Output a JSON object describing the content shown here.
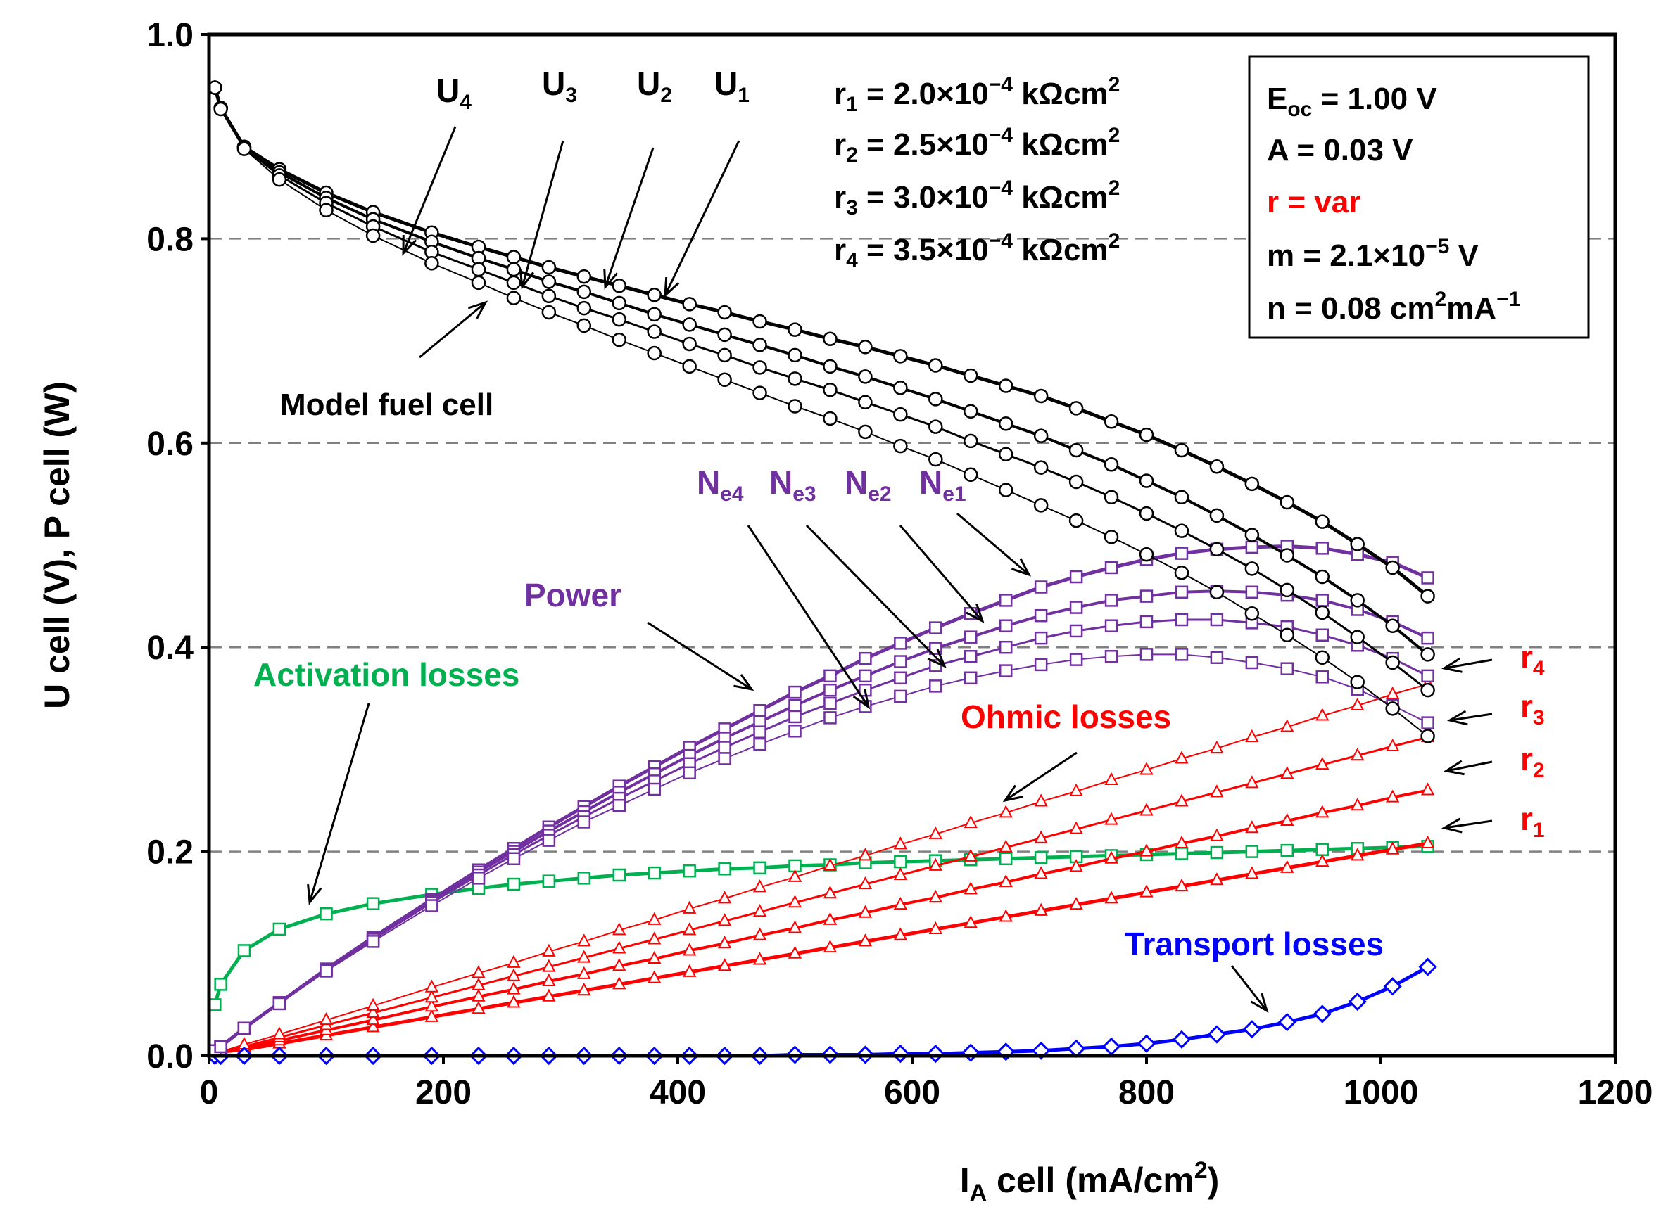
{
  "chart_data": {
    "type": "line",
    "xlabel_main": "I",
    "xlabel_sub": "A",
    "xlabel_rest": " cell (mA/cm",
    "xlabel_sup": "2",
    "xlabel_end": ")",
    "ylabel": "U cell (V), P cell (W)",
    "xlim": [
      0,
      1200
    ],
    "ylim": [
      0,
      1.0
    ],
    "xticks": [
      "0",
      "200",
      "400",
      "600",
      "800",
      "1000",
      "1200"
    ],
    "yticks": [
      "0.0",
      "0.2",
      "0.4",
      "0.6",
      "0.8",
      "1.0"
    ],
    "gridlines_y": [
      0.2,
      0.4,
      0.6,
      0.8
    ],
    "colors": {
      "voltage": "#000000",
      "power": "#7030A0",
      "ohmic": "#FF0000",
      "activation": "#00B050",
      "transport": "#0000FF"
    },
    "x": [
      5,
      10,
      30,
      60,
      100,
      140,
      190,
      230,
      260,
      290,
      320,
      350,
      380,
      410,
      440,
      470,
      500,
      530,
      560,
      590,
      620,
      650,
      680,
      710,
      740,
      770,
      800,
      830,
      860,
      890,
      920,
      950,
      980,
      1010,
      1040
    ],
    "series": [
      {
        "name": "U1",
        "group": "voltage",
        "width": 5,
        "values": [
          0.948,
          0.928,
          0.89,
          0.868,
          0.845,
          0.826,
          0.806,
          0.792,
          0.782,
          0.772,
          0.763,
          0.754,
          0.745,
          0.736,
          0.728,
          0.719,
          0.711,
          0.702,
          0.694,
          0.685,
          0.676,
          0.666,
          0.656,
          0.646,
          0.634,
          0.621,
          0.608,
          0.593,
          0.577,
          0.56,
          0.542,
          0.523,
          0.501,
          0.478,
          0.45
        ]
      },
      {
        "name": "U2",
        "group": "voltage",
        "width": 4,
        "values": [
          0.948,
          0.928,
          0.89,
          0.865,
          0.84,
          0.819,
          0.797,
          0.781,
          0.77,
          0.758,
          0.748,
          0.737,
          0.726,
          0.716,
          0.706,
          0.696,
          0.686,
          0.675,
          0.665,
          0.654,
          0.643,
          0.631,
          0.619,
          0.607,
          0.593,
          0.579,
          0.563,
          0.547,
          0.529,
          0.51,
          0.49,
          0.469,
          0.446,
          0.421,
          0.393
        ]
      },
      {
        "name": "U3",
        "group": "voltage",
        "width": 3,
        "values": [
          0.948,
          0.928,
          0.889,
          0.862,
          0.835,
          0.812,
          0.787,
          0.77,
          0.757,
          0.744,
          0.732,
          0.721,
          0.709,
          0.697,
          0.686,
          0.674,
          0.663,
          0.652,
          0.64,
          0.628,
          0.616,
          0.602,
          0.589,
          0.576,
          0.562,
          0.547,
          0.531,
          0.514,
          0.496,
          0.477,
          0.456,
          0.434,
          0.41,
          0.385,
          0.358
        ]
      },
      {
        "name": "U4",
        "group": "voltage",
        "width": 2,
        "values": [
          0.948,
          0.927,
          0.888,
          0.858,
          0.828,
          0.803,
          0.776,
          0.757,
          0.742,
          0.728,
          0.715,
          0.701,
          0.688,
          0.675,
          0.662,
          0.649,
          0.636,
          0.624,
          0.611,
          0.597,
          0.584,
          0.569,
          0.554,
          0.539,
          0.524,
          0.508,
          0.491,
          0.473,
          0.454,
          0.433,
          0.412,
          0.39,
          0.366,
          0.34,
          0.313
        ]
      },
      {
        "name": "Ne1",
        "group": "power",
        "width": 5,
        "values": [
          0.005,
          0.009,
          0.027,
          0.052,
          0.085,
          0.116,
          0.153,
          0.182,
          0.203,
          0.224,
          0.244,
          0.264,
          0.283,
          0.302,
          0.32,
          0.338,
          0.356,
          0.372,
          0.389,
          0.404,
          0.419,
          0.433,
          0.446,
          0.459,
          0.469,
          0.478,
          0.486,
          0.492,
          0.496,
          0.498,
          0.499,
          0.497,
          0.491,
          0.483,
          0.468
        ]
      },
      {
        "name": "Ne2",
        "group": "power",
        "width": 4,
        "values": [
          0.005,
          0.009,
          0.027,
          0.052,
          0.084,
          0.115,
          0.151,
          0.18,
          0.2,
          0.22,
          0.239,
          0.258,
          0.276,
          0.294,
          0.311,
          0.327,
          0.343,
          0.358,
          0.372,
          0.386,
          0.399,
          0.41,
          0.421,
          0.431,
          0.439,
          0.446,
          0.45,
          0.454,
          0.455,
          0.454,
          0.451,
          0.446,
          0.437,
          0.425,
          0.409
        ]
      },
      {
        "name": "Ne3",
        "group": "power",
        "width": 3,
        "values": [
          0.005,
          0.009,
          0.027,
          0.052,
          0.084,
          0.114,
          0.15,
          0.177,
          0.197,
          0.216,
          0.234,
          0.252,
          0.269,
          0.286,
          0.302,
          0.317,
          0.332,
          0.345,
          0.358,
          0.37,
          0.382,
          0.391,
          0.4,
          0.409,
          0.416,
          0.421,
          0.425,
          0.427,
          0.427,
          0.424,
          0.42,
          0.412,
          0.402,
          0.389,
          0.372
        ]
      },
      {
        "name": "Ne4",
        "group": "power",
        "width": 2,
        "values": [
          0.005,
          0.009,
          0.027,
          0.051,
          0.083,
          0.112,
          0.147,
          0.174,
          0.193,
          0.211,
          0.229,
          0.245,
          0.261,
          0.277,
          0.291,
          0.305,
          0.318,
          0.331,
          0.342,
          0.352,
          0.362,
          0.37,
          0.377,
          0.383,
          0.388,
          0.391,
          0.393,
          0.393,
          0.39,
          0.385,
          0.379,
          0.371,
          0.359,
          0.343,
          0.326
        ]
      },
      {
        "name": "r1",
        "group": "ohmic",
        "width": 5,
        "values": [
          0.002,
          0.004,
          0.006,
          0.012,
          0.02,
          0.028,
          0.038,
          0.046,
          0.052,
          0.058,
          0.064,
          0.07,
          0.076,
          0.082,
          0.088,
          0.094,
          0.1,
          0.106,
          0.112,
          0.118,
          0.124,
          0.13,
          0.136,
          0.142,
          0.148,
          0.154,
          0.16,
          0.166,
          0.172,
          0.178,
          0.184,
          0.19,
          0.196,
          0.202,
          0.208
        ]
      },
      {
        "name": "r2",
        "group": "ohmic",
        "width": 4,
        "values": [
          0.002,
          0.003,
          0.008,
          0.015,
          0.025,
          0.035,
          0.048,
          0.058,
          0.065,
          0.073,
          0.08,
          0.088,
          0.095,
          0.103,
          0.11,
          0.118,
          0.125,
          0.133,
          0.14,
          0.148,
          0.155,
          0.163,
          0.17,
          0.178,
          0.185,
          0.193,
          0.2,
          0.208,
          0.215,
          0.223,
          0.23,
          0.238,
          0.245,
          0.253,
          0.26
        ]
      },
      {
        "name": "r3",
        "group": "ohmic",
        "width": 3,
        "values": [
          0.002,
          0.003,
          0.009,
          0.018,
          0.03,
          0.042,
          0.057,
          0.069,
          0.078,
          0.087,
          0.096,
          0.105,
          0.114,
          0.123,
          0.132,
          0.141,
          0.15,
          0.159,
          0.168,
          0.177,
          0.186,
          0.195,
          0.204,
          0.213,
          0.222,
          0.231,
          0.24,
          0.249,
          0.258,
          0.267,
          0.276,
          0.285,
          0.294,
          0.303,
          0.312
        ]
      },
      {
        "name": "r4",
        "group": "ohmic",
        "width": 2,
        "values": [
          0.002,
          0.004,
          0.011,
          0.021,
          0.035,
          0.049,
          0.067,
          0.081,
          0.091,
          0.102,
          0.112,
          0.123,
          0.133,
          0.144,
          0.154,
          0.165,
          0.175,
          0.186,
          0.196,
          0.207,
          0.217,
          0.228,
          0.238,
          0.249,
          0.259,
          0.27,
          0.28,
          0.291,
          0.301,
          0.312,
          0.322,
          0.333,
          0.343,
          0.354,
          0.364
        ]
      },
      {
        "name": "Activation",
        "group": "activation",
        "width": 5,
        "values": [
          0.05,
          0.07,
          0.103,
          0.124,
          0.139,
          0.149,
          0.158,
          0.164,
          0.168,
          0.171,
          0.174,
          0.177,
          0.179,
          0.181,
          0.183,
          0.184,
          0.186,
          0.187,
          0.189,
          0.19,
          0.191,
          0.192,
          0.193,
          0.194,
          0.195,
          0.196,
          0.197,
          0.198,
          0.199,
          0.2,
          0.201,
          0.202,
          0.203,
          0.204,
          0.205
        ]
      },
      {
        "name": "Transport",
        "group": "transport",
        "width": 5,
        "values": [
          0.0,
          0.0,
          0.0,
          0.0,
          0.0,
          0.0,
          0.0,
          0.0,
          0.0,
          0.0,
          0.0,
          0.0,
          0.0,
          0.0,
          0.0,
          0.0,
          0.001,
          0.001,
          0.001,
          0.002,
          0.002,
          0.003,
          0.004,
          0.005,
          0.007,
          0.009,
          0.012,
          0.016,
          0.021,
          0.026,
          0.033,
          0.041,
          0.053,
          0.068,
          0.087
        ]
      }
    ],
    "labels": {
      "u1": "U",
      "u1_sub": "1",
      "u2": "U",
      "u2_sub": "2",
      "u3": "U",
      "u3_sub": "3",
      "u4": "U",
      "u4_sub": "4",
      "model_fuel_cell": "Model fuel cell",
      "power": "Power",
      "ne1": "N",
      "ne1_sub": "e1",
      "ne2": "N",
      "ne2_sub": "e2",
      "ne3": "N",
      "ne3_sub": "e3",
      "ne4": "N",
      "ne4_sub": "e4",
      "activation_losses": "Activation losses",
      "ohmic_losses": "Ohmic losses",
      "transport_losses": "Transport losses",
      "r1": "r",
      "r1_sub": "1",
      "r2": "r",
      "r2_sub": "2",
      "r3": "r",
      "r3_sub": "3",
      "r4": "r",
      "r4_sub": "4"
    },
    "r_values": [
      {
        "sym": "r",
        "sub": "1",
        "text": " = 2.0×10",
        "exp": "−4",
        "unit": " kΩcm",
        "unit_sup": "2"
      },
      {
        "sym": "r",
        "sub": "2",
        "text": " = 2.5×10",
        "exp": "−4",
        "unit": " kΩcm",
        "unit_sup": "2"
      },
      {
        "sym": "r",
        "sub": "3",
        "text": " = 3.0×10",
        "exp": "−4",
        "unit": " kΩcm",
        "unit_sup": "2"
      },
      {
        "sym": "r",
        "sub": "4",
        "text": " = 3.5×10",
        "exp": "−4",
        "unit": " kΩcm",
        "unit_sup": "2"
      }
    ],
    "params": {
      "eoc_main": "E",
      "eoc_sub": "oc",
      "eoc_rest": " = 1.00 V",
      "a": "A = 0.03 V",
      "r": "r = var",
      "m_main": "m = 2.1×10",
      "m_exp": "−5",
      "m_rest": " V",
      "n_main": "n = 0.08 cm",
      "n_sup1": "2",
      "n_mid": "mA",
      "n_sup2": "−1"
    }
  }
}
